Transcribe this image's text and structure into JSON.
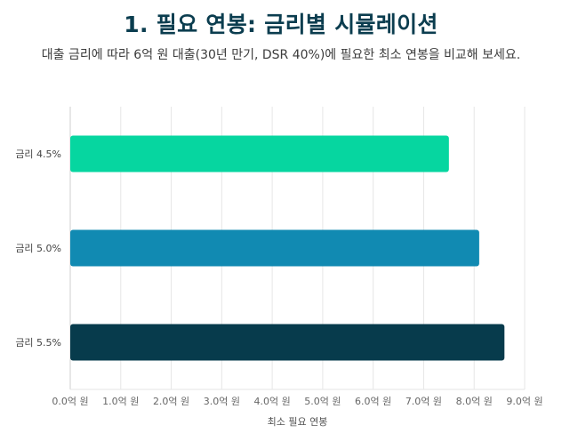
{
  "header": {
    "title": "1. 필요 연봉: 금리별 시뮬레이션",
    "subtitle": "대출 금리에 따라 6억 원 대출(30년 만기, DSR 40%)에 필요한 최소 연봉을 비교해 보세요."
  },
  "chart_data": {
    "type": "bar",
    "orientation": "horizontal",
    "categories": [
      "금리 4.5%",
      "금리 5.0%",
      "금리 5.5%"
    ],
    "values": [
      7.5,
      8.1,
      8.6
    ],
    "unit": "억 원",
    "bar_colors": [
      "#06d6a0",
      "#118ab2",
      "#073b4c"
    ],
    "xlabel": "최소 필요 연봉",
    "ylabel": "",
    "xlim": [
      0,
      9
    ],
    "xticks": [
      "0.0억 원",
      "1.0억 원",
      "2.0억 원",
      "3.0억 원",
      "4.0억 원",
      "5.0억 원",
      "6.0억 원",
      "7.0억 원",
      "8.0억 원",
      "9.0억 원"
    ],
    "grid": true,
    "legend": "none"
  }
}
